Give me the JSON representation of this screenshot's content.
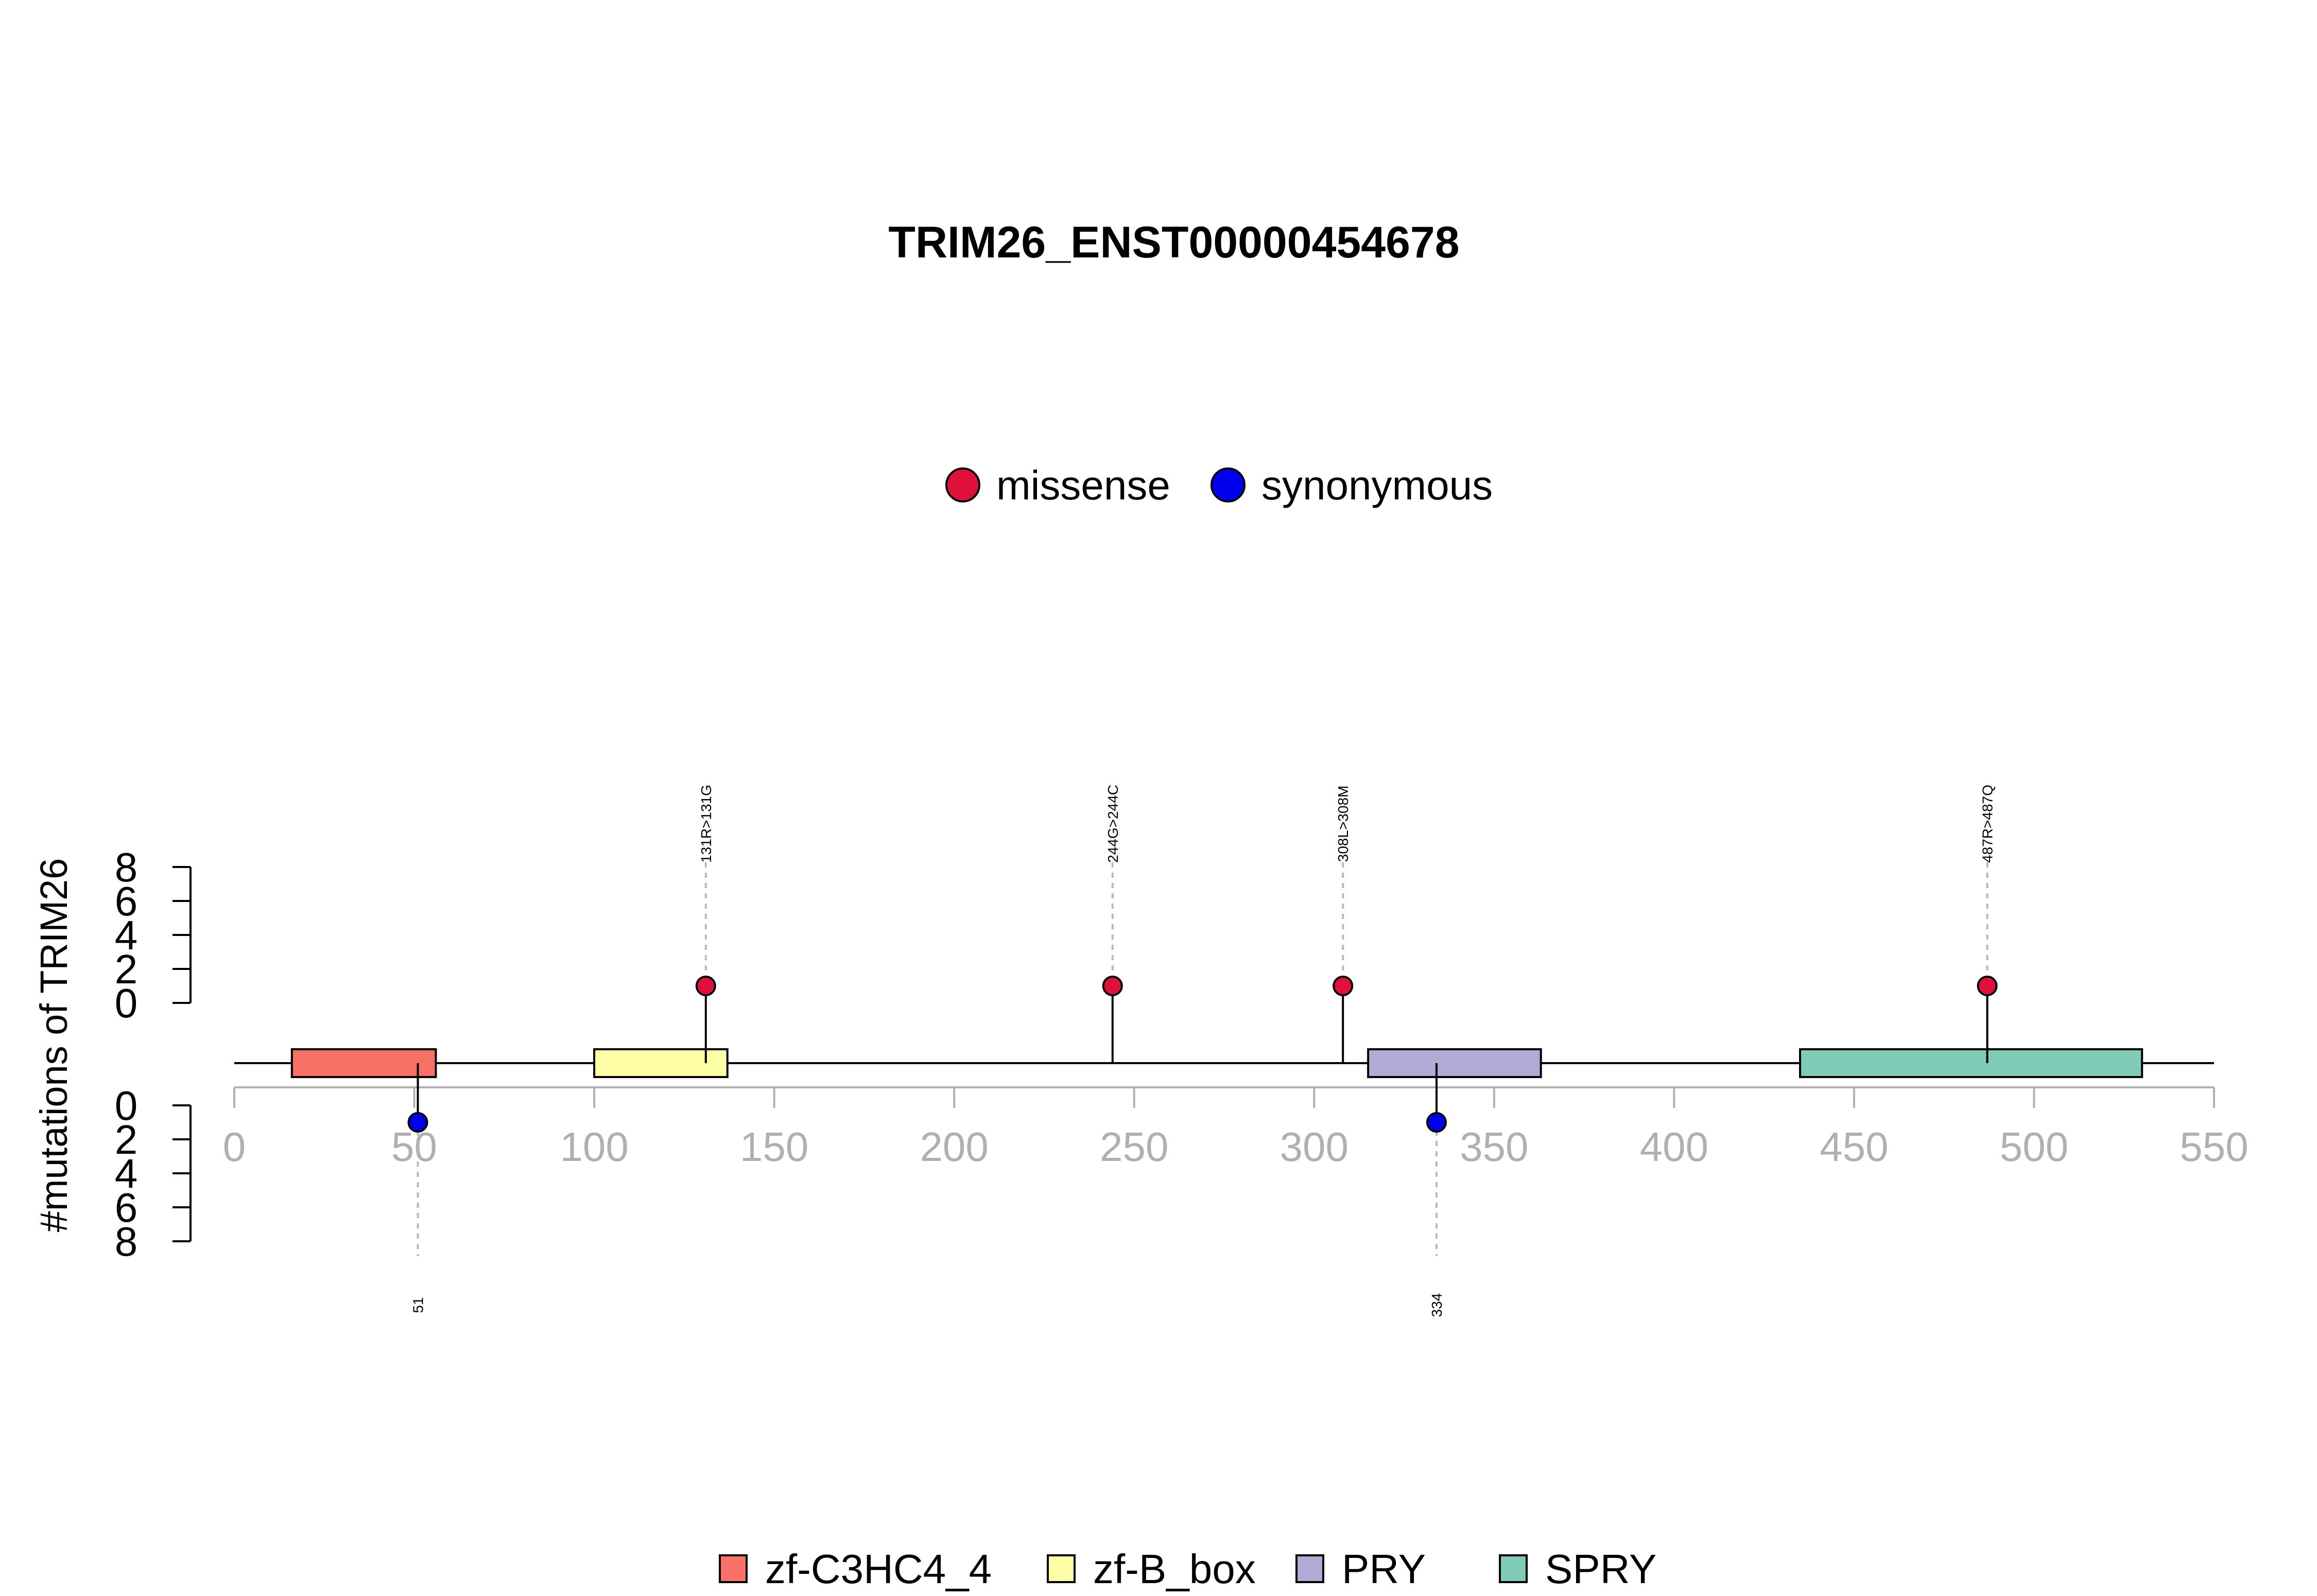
{
  "chart_data": {
    "type": "lollipop",
    "title": "TRIM26_ENST00000454678",
    "ylabel": "#mutations of TRIM26",
    "xlim": [
      0,
      550
    ],
    "x_ticks": [
      0,
      50,
      100,
      150,
      200,
      250,
      300,
      350,
      400,
      450,
      500,
      550
    ],
    "y_ticks": [
      0,
      2,
      4,
      6,
      8
    ],
    "ylim": [
      0,
      8
    ],
    "protein_length": 550,
    "mutation_legend": [
      {
        "name": "missense",
        "color": "#e0103c"
      },
      {
        "name": "synonymous",
        "color": "#0000ee"
      }
    ],
    "domain_legend": [
      {
        "name": "zf-C3HC4_4",
        "color": "#f97166"
      },
      {
        "name": "zf-B_box",
        "color": "#ffffa8"
      },
      {
        "name": "PRY",
        "color": "#b0aad4"
      },
      {
        "name": "SPRY",
        "color": "#80cbb8"
      }
    ],
    "domains": [
      {
        "name": "zf-C3HC4_4",
        "start": 16,
        "end": 56,
        "color": "#f97166"
      },
      {
        "name": "zf-B_box",
        "start": 100,
        "end": 137,
        "color": "#ffffa8"
      },
      {
        "name": "PRY",
        "start": 315,
        "end": 363,
        "color": "#b0aad4"
      },
      {
        "name": "SPRY",
        "start": 435,
        "end": 530,
        "color": "#80cbb8"
      }
    ],
    "mutations_top": [
      {
        "pos": 131,
        "count": 1,
        "type": "missense",
        "label": "131R>131G"
      },
      {
        "pos": 244,
        "count": 1,
        "type": "missense",
        "label": "244G>244C"
      },
      {
        "pos": 308,
        "count": 1,
        "type": "missense",
        "label": "308L>308M"
      },
      {
        "pos": 487,
        "count": 1,
        "type": "missense",
        "label": "487R>487Q"
      }
    ],
    "mutations_bottom": [
      {
        "pos": 51,
        "count": 1,
        "type": "synonymous",
        "label": "51"
      },
      {
        "pos": 334,
        "count": 1,
        "type": "synonymous",
        "label": "334"
      }
    ]
  }
}
